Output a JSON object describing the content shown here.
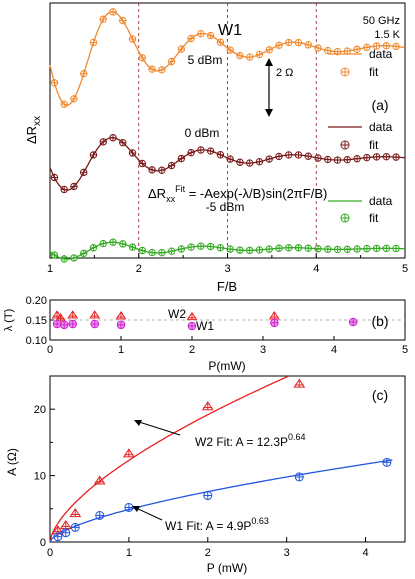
{
  "chart_data": [
    {
      "panel_label": "(a)",
      "type": "line",
      "title": "",
      "xlabel": "F/B",
      "ylabel": "ΔRxx",
      "xlim": [
        1,
        5
      ],
      "x_ticks": [
        "1",
        "2",
        "3",
        "4",
        "5"
      ],
      "ytick_labels_shown": false,
      "grid_vertical_dashed": [
        2,
        3,
        4
      ],
      "annotations": {
        "sample": "W1",
        "frequency": "50 GHz",
        "temperature": "1.5 K",
        "scale_bar": "2 Ω",
        "formula": "ΔRxxFit = -Aexp(-λ/B)sin(2πF/B)",
        "power_labels": [
          "5 dBm",
          "0 dBm",
          "-5 dBm"
        ]
      },
      "legend_placement": "right",
      "series": [
        {
          "power": "5 dBm",
          "color": "#f08a30",
          "data_label": "data",
          "fit_label": "fit",
          "offset_ohm": 4.0,
          "A_ohm": 2.5,
          "lambda": 0.24
        },
        {
          "power": "0 dBm",
          "color": "#7a1a1a",
          "data_label": "data",
          "fit_label": "fit",
          "offset_ohm": 0.0,
          "A_ohm": 1.4,
          "lambda": 0.24
        },
        {
          "power": "-5 dBm",
          "color": "#33aa22",
          "data_label": "data",
          "fit_label": "fit",
          "offset_ohm": -3.3,
          "A_ohm": 0.45,
          "lambda": 0.24
        }
      ],
      "phase_ohm_per_unit": 1
    },
    {
      "panel_label": "(b)",
      "type": "scatter",
      "xlabel": "P(mW)",
      "ylabel": "λ (T)",
      "xlim": [
        0,
        5
      ],
      "ylim": [
        0.1,
        0.2
      ],
      "x_ticks": [
        "0",
        "1",
        "2",
        "3",
        "4",
        "5"
      ],
      "y_ticks": [
        "0.10",
        "0.15",
        "0.20"
      ],
      "grid_horizontal_dashed": true,
      "series": [
        {
          "name": "W2",
          "color": "#e82020",
          "marker": "triangle",
          "x": [
            0.1,
            0.15,
            0.32,
            0.63,
            1.0,
            2.0,
            3.16
          ],
          "y": [
            0.162,
            0.155,
            0.162,
            0.162,
            0.16,
            0.158,
            0.16
          ]
        },
        {
          "name": "W1",
          "color": "#d020d0",
          "marker": "circle",
          "x": [
            0.1,
            0.2,
            0.32,
            0.63,
            1.0,
            2.0,
            3.16,
            4.27
          ],
          "y": [
            0.14,
            0.138,
            0.14,
            0.14,
            0.138,
            0.135,
            0.143,
            0.145
          ]
        }
      ]
    },
    {
      "panel_label": "(c)",
      "type": "scatter",
      "xlabel": "P (mW)",
      "ylabel": "A (Ω)",
      "xlim": [
        0,
        4.5
      ],
      "ylim": [
        0,
        25
      ],
      "x_ticks": [
        "0",
        "1",
        "2",
        "3",
        "4"
      ],
      "y_ticks": [
        "0",
        "10",
        "20"
      ],
      "series": [
        {
          "name": "W2",
          "color": "#e82020",
          "marker": "triangle",
          "x": [
            0.1,
            0.2,
            0.32,
            0.63,
            1.0,
            2.0,
            3.16
          ],
          "y": [
            1.7,
            2.5,
            4.3,
            9.2,
            13.3,
            20.4,
            23.8
          ]
        },
        {
          "name": "W1",
          "color": "#2255dd",
          "marker": "circle",
          "x": [
            0.1,
            0.2,
            0.32,
            0.63,
            1.0,
            2.0,
            3.16,
            4.27
          ],
          "y": [
            0.8,
            1.4,
            2.2,
            4.0,
            5.2,
            7.0,
            9.8,
            12.0
          ]
        }
      ],
      "fits": [
        {
          "label": "W2 Fit: A = 12.3P",
          "exponent_label": "0.64",
          "color": "#e82020",
          "coef": 12.3,
          "exponent": 0.64
        },
        {
          "label": "W1 Fit: A = 4.9P",
          "exponent_label": "0.63",
          "color": "#2255dd",
          "coef": 4.9,
          "exponent": 0.63
        }
      ]
    }
  ]
}
